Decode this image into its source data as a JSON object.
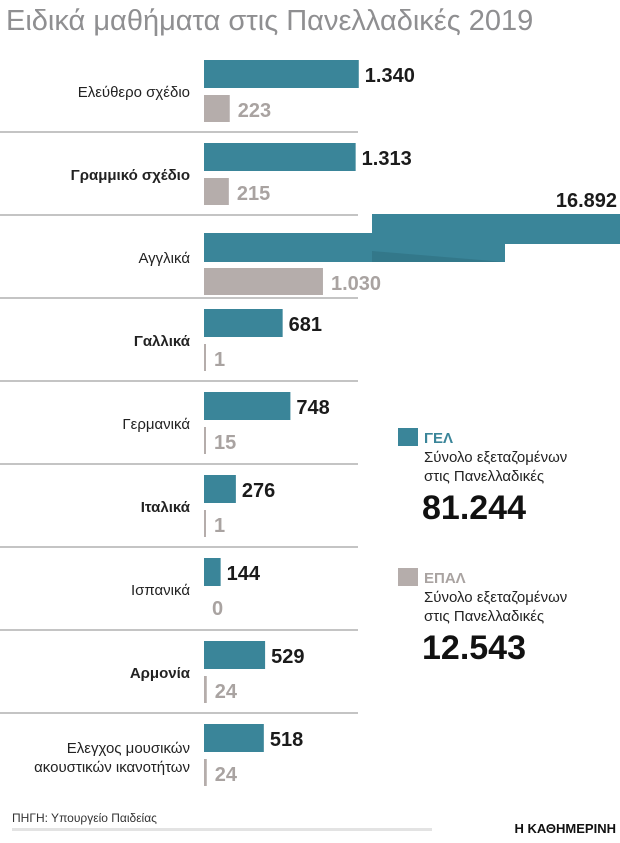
{
  "chart_data": {
    "type": "bar",
    "orientation": "horizontal",
    "title": "Ειδικά μαθήματα στις Πανελλαδικές 2019",
    "categories": [
      "Ελεύθερο σχέδιο",
      "Γραμμικό σχέδιο",
      "Αγγλικά",
      "Γαλλικά",
      "Γερμανικά",
      "Ιταλικά",
      "Ισπανικά",
      "Αρμονία",
      "Ελεγχος μουσικών ακουστικών ικανοτήτων"
    ],
    "series": [
      {
        "name": "ΓΕΛ",
        "color": "#3a8599",
        "values": [
          1340,
          1313,
          16892,
          681,
          748,
          276,
          144,
          529,
          518
        ],
        "labels": [
          "1.340",
          "1.313",
          "16.892",
          "681",
          "748",
          "276",
          "144",
          "529",
          "518"
        ]
      },
      {
        "name": "ΕΠΑΛ",
        "color": "#b5adab",
        "values": [
          223,
          215,
          1030,
          1,
          15,
          1,
          0,
          24,
          24
        ],
        "labels": [
          "223",
          "215",
          "1.030",
          "1",
          "15",
          "1",
          "0",
          "24",
          "24"
        ]
      }
    ],
    "broken_bar_category": "Αγγλικά",
    "grid": false
  },
  "legend": [
    {
      "name": "ΓΕΛ",
      "text1": "Σύνολο εξεταζομένων",
      "text2": "στις Πανελλαδικές",
      "total": "81.244",
      "color": "#3a8599"
    },
    {
      "name": "ΕΠΑΛ",
      "text1": "Σύνολο εξεταζομένων",
      "text2": "στις Πανελλαδικές",
      "total": "12.543",
      "color": "#b5adab"
    }
  ],
  "source": "ΠΗΓΗ: Υπουργείο Παιδείας",
  "publisher": "Η ΚΑΘΗΜΕΡΙΝΗ"
}
